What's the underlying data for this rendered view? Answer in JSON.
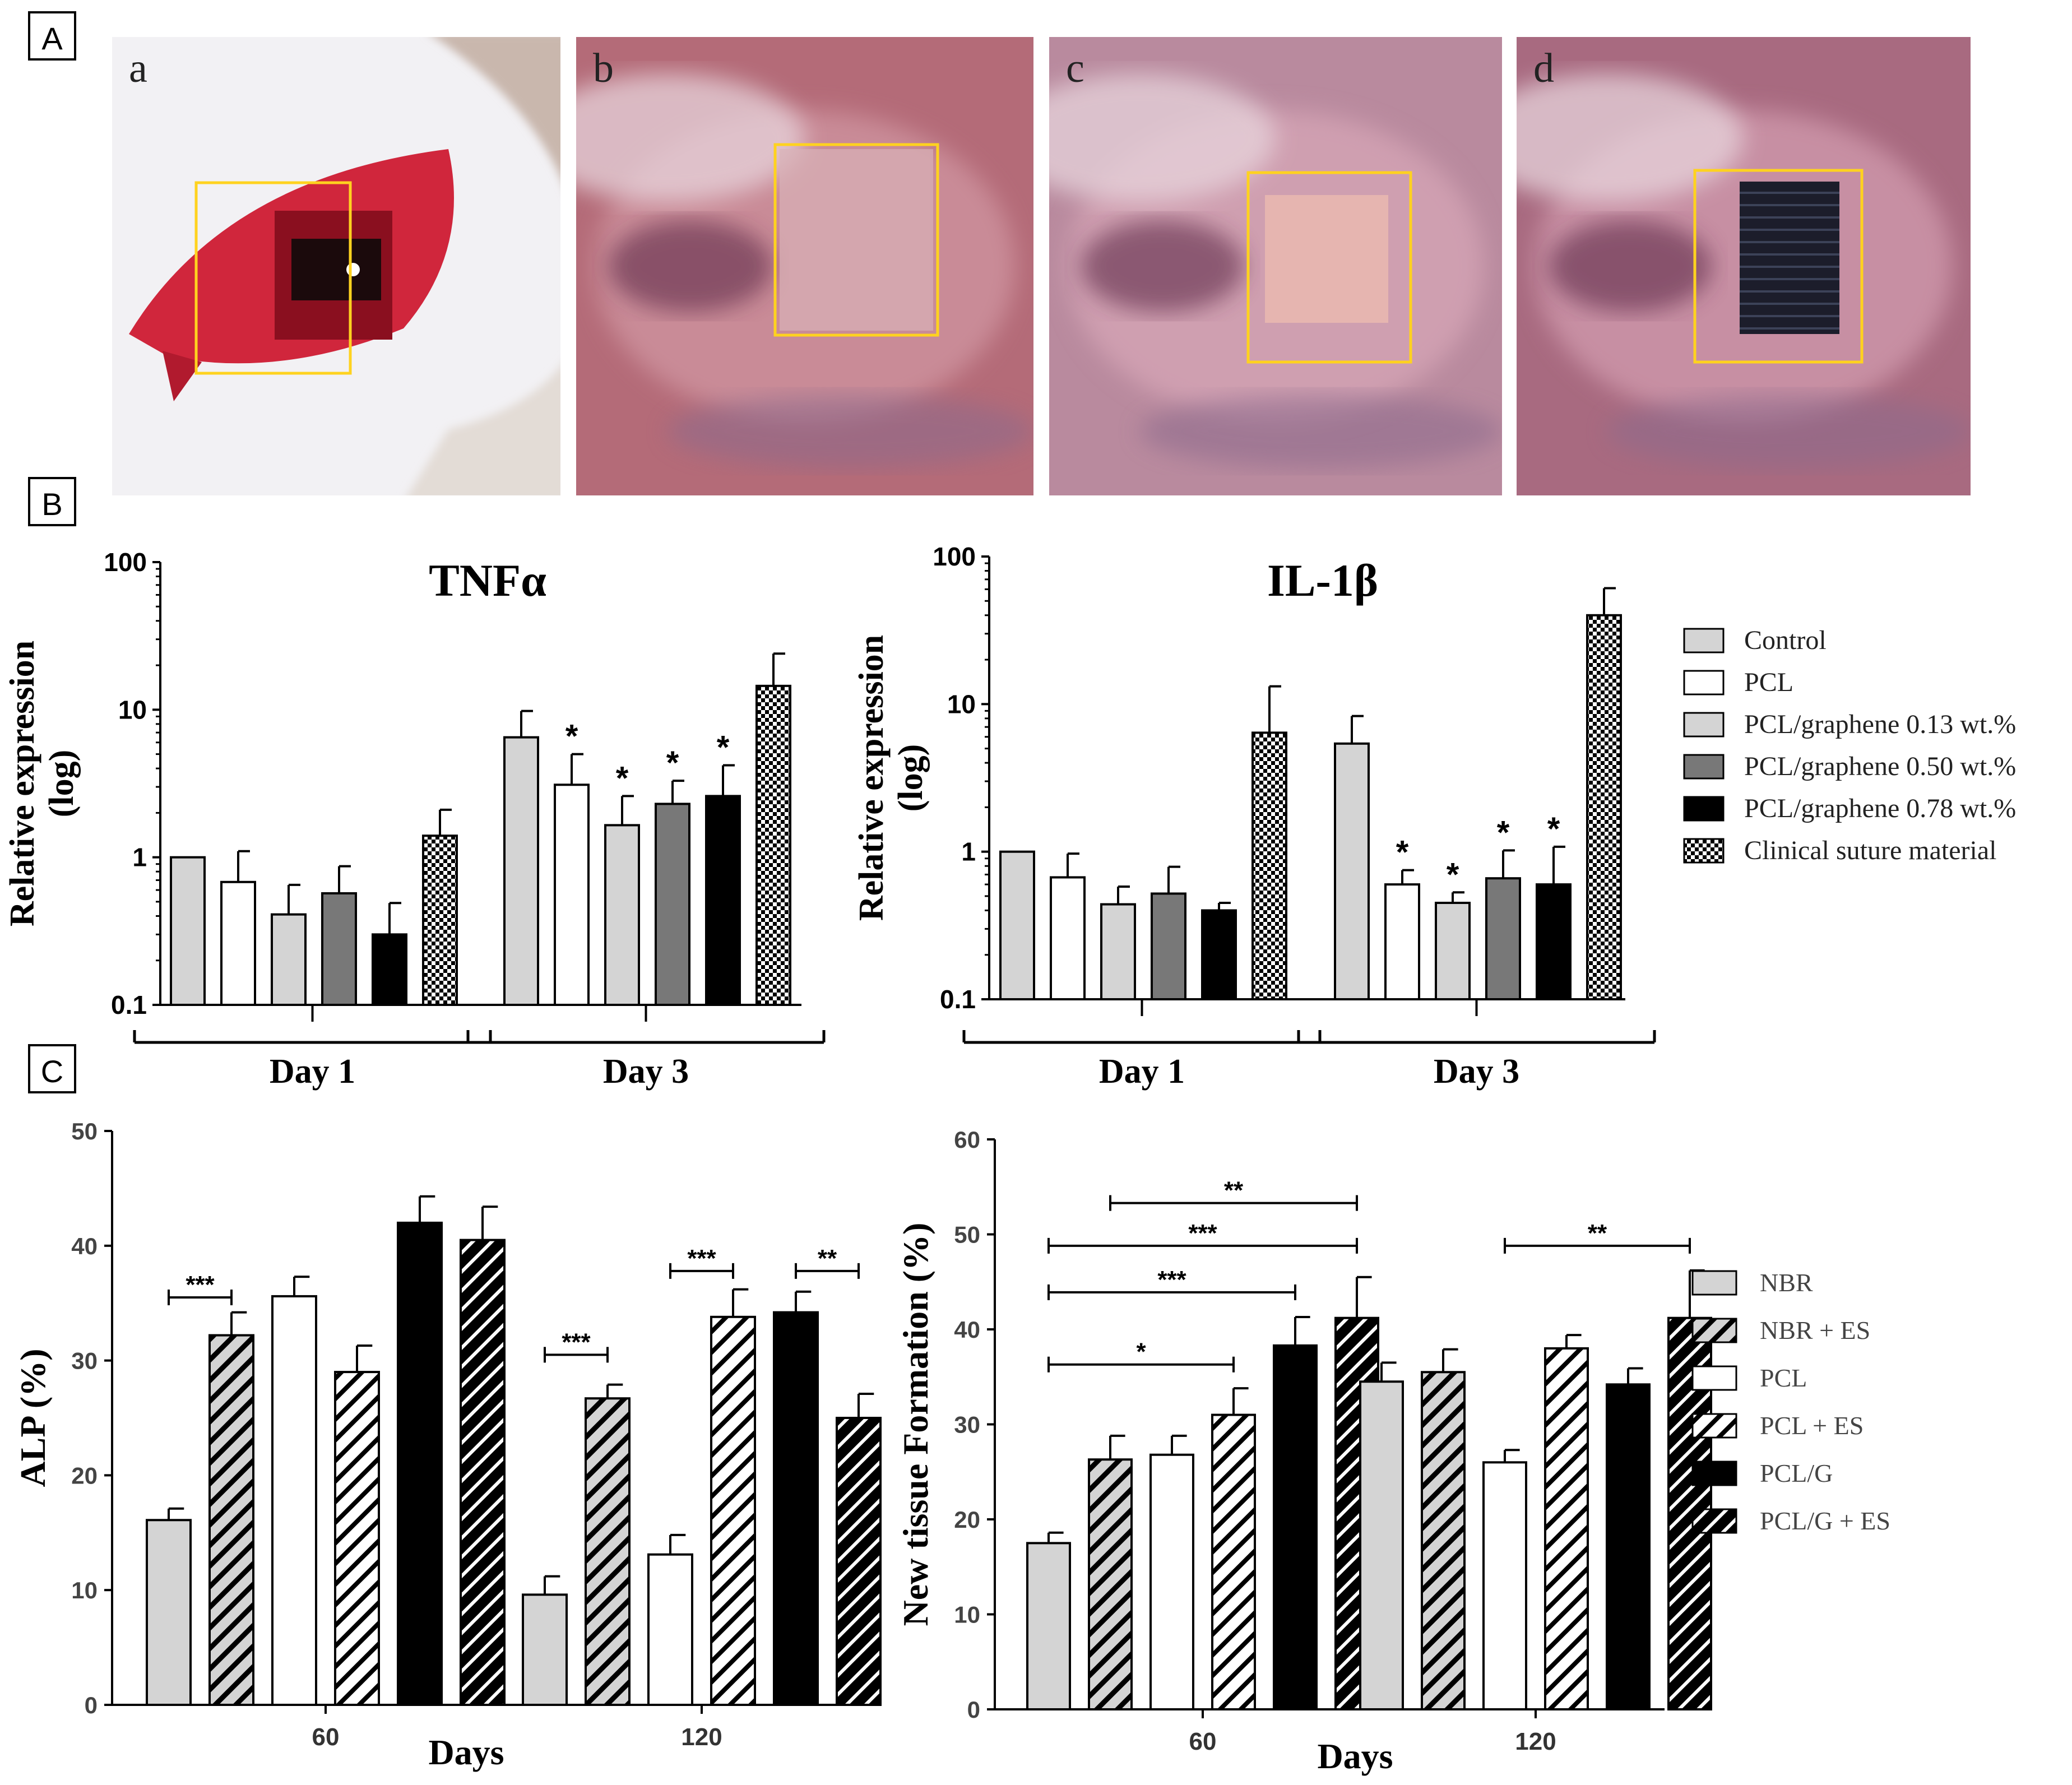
{
  "figure": {
    "panel_labels": [
      "A",
      "B",
      "C"
    ],
    "photos": [
      {
        "letter": "a",
        "tissue": "#d0263c",
        "skin": "#f2f1f4",
        "scene": "open-wound"
      },
      {
        "letter": "b",
        "tissue": "#c98b97",
        "skin": "#b46b78",
        "scene": "scaffold-translucent"
      },
      {
        "letter": "c",
        "tissue": "#cf9fb0",
        "skin": "#b98a9e",
        "scene": "scaffold-grid"
      },
      {
        "letter": "d",
        "tissue": "#c78fa3",
        "skin": "#a86a80",
        "scene": "scaffold-black"
      }
    ],
    "highlight_color": "#ffd21f"
  },
  "colors": {
    "control": "#d4d4d4",
    "pcl": "#ffffff",
    "light": "#d4d4d4",
    "mid": "#787878",
    "black": "#000000"
  },
  "chart_data": [
    {
      "type": "bar",
      "title": "TNFα",
      "ylabel": "Relative expression (log)",
      "yscale": "log",
      "ylim": [
        0.1,
        100
      ],
      "yticks": [
        0.1,
        1,
        10,
        100
      ],
      "tick_labels": [
        "0.1",
        "1",
        "10",
        "100"
      ],
      "categories": [
        "Day 1",
        "Day 3"
      ],
      "series": [
        {
          "name": "Control",
          "fill": "light",
          "values": [
            1.0,
            6.5
          ],
          "errors": [
            0,
            3.3
          ],
          "sig": [
            "",
            ""
          ]
        },
        {
          "name": "PCL",
          "fill": "white",
          "values": [
            0.68,
            3.1
          ],
          "errors": [
            0.42,
            1.9
          ],
          "sig": [
            "",
            "*"
          ]
        },
        {
          "name": "PCL/graphene 0.13 wt.%",
          "fill": "light",
          "values": [
            0.41,
            1.65
          ],
          "errors": [
            0.24,
            0.95
          ],
          "sig": [
            "",
            "*"
          ]
        },
        {
          "name": "PCL/graphene 0.50 wt.%",
          "fill": "mid",
          "values": [
            0.57,
            2.3
          ],
          "errors": [
            0.3,
            1.0
          ],
          "sig": [
            "",
            "*"
          ]
        },
        {
          "name": "PCL/graphene 0.78 wt.%",
          "fill": "black",
          "values": [
            0.3,
            2.6
          ],
          "errors": [
            0.19,
            1.6
          ],
          "sig": [
            "",
            "*"
          ]
        },
        {
          "name": "Clinical suture material",
          "fill": "checker",
          "values": [
            1.4,
            14.5
          ],
          "errors": [
            0.7,
            9.5
          ],
          "sig": [
            "",
            ""
          ]
        }
      ],
      "legend": "right"
    },
    {
      "type": "bar",
      "title": "IL-1β",
      "ylabel": "Relative expression (log)",
      "yscale": "log",
      "ylim": [
        0.1,
        100
      ],
      "yticks": [
        0.1,
        1,
        10,
        100
      ],
      "tick_labels": [
        "0.1",
        "1",
        "10",
        "100"
      ],
      "categories": [
        "Day 1",
        "Day 3"
      ],
      "series": [
        {
          "name": "Control",
          "fill": "light",
          "values": [
            1.0,
            5.4
          ],
          "errors": [
            0,
            2.9
          ],
          "sig": [
            "",
            ""
          ]
        },
        {
          "name": "PCL",
          "fill": "white",
          "values": [
            0.67,
            0.6
          ],
          "errors": [
            0.3,
            0.15
          ],
          "sig": [
            "",
            "*"
          ]
        },
        {
          "name": "PCL/graphene 0.13 wt.%",
          "fill": "light",
          "values": [
            0.44,
            0.45
          ],
          "errors": [
            0.14,
            0.08
          ],
          "sig": [
            "",
            "*"
          ]
        },
        {
          "name": "PCL/graphene 0.50 wt.%",
          "fill": "mid",
          "values": [
            0.52,
            0.66
          ],
          "errors": [
            0.27,
            0.36
          ],
          "sig": [
            "",
            "*"
          ]
        },
        {
          "name": "PCL/graphene 0.78 wt.%",
          "fill": "black",
          "values": [
            0.4,
            0.6
          ],
          "errors": [
            0.05,
            0.48
          ],
          "sig": [
            "",
            "*"
          ]
        },
        {
          "name": "Clinical suture material",
          "fill": "checker",
          "values": [
            6.4,
            40
          ],
          "errors": [
            6.8,
            21
          ],
          "sig": [
            "",
            ""
          ]
        }
      ],
      "legend": {
        "position": "right",
        "entries": [
          "Control",
          "PCL",
          "PCL/graphene 0.13 wt.%",
          "PCL/graphene 0.50 wt.%",
          "PCL/graphene 0.78 wt.%",
          "Clinical suture material"
        ]
      }
    },
    {
      "type": "bar",
      "title": "",
      "ylabel": "ALP (%)",
      "xlabel": "Days",
      "ylim": [
        0,
        50
      ],
      "yticks": [
        0,
        10,
        20,
        30,
        40,
        50
      ],
      "tick_labels": [
        "0",
        "10",
        "20",
        "30",
        "40",
        "50"
      ],
      "categories": [
        "60",
        "120"
      ],
      "series": [
        {
          "name": "NBR",
          "fill": "light",
          "values": [
            16.1,
            9.6
          ],
          "errors": [
            1.0,
            1.6
          ]
        },
        {
          "name": "NBR + ES",
          "fill": "hatch-light",
          "values": [
            32.2,
            26.7
          ],
          "errors": [
            2.0,
            1.2
          ]
        },
        {
          "name": "PCL",
          "fill": "white",
          "values": [
            35.6,
            13.1
          ],
          "errors": [
            1.7,
            1.7
          ]
        },
        {
          "name": "PCL + ES",
          "fill": "hatch-white",
          "values": [
            29.0,
            33.8
          ],
          "errors": [
            2.3,
            2.4
          ]
        },
        {
          "name": "PCL/G",
          "fill": "black",
          "values": [
            42.0,
            34.2
          ],
          "errors": [
            2.3,
            1.8
          ]
        },
        {
          "name": "PCL/G + ES",
          "fill": "hatch-black",
          "values": [
            40.5,
            25.0
          ],
          "errors": [
            2.9,
            2.1
          ]
        }
      ],
      "significance": [
        {
          "group": 0,
          "from": 0,
          "to": 1,
          "label": "***",
          "y": 35.5
        },
        {
          "group": 1,
          "from": 0,
          "to": 1,
          "label": "***",
          "y": 30.5
        },
        {
          "group": 1,
          "from": 2,
          "to": 3,
          "label": "***",
          "y": 37.8
        },
        {
          "group": 1,
          "from": 4,
          "to": 5,
          "label": "**",
          "y": 37.8
        }
      ]
    },
    {
      "type": "bar",
      "title": "",
      "ylabel": "New tissue Formation (%)",
      "xlabel": "Days",
      "ylim": [
        0,
        60
      ],
      "yticks": [
        0,
        10,
        20,
        30,
        40,
        50,
        60
      ],
      "tick_labels": [
        "0",
        "10",
        "20",
        "30",
        "40",
        "50",
        "60"
      ],
      "categories": [
        "60",
        "120"
      ],
      "series": [
        {
          "name": "NBR",
          "fill": "light",
          "values": [
            17.5,
            34.5
          ],
          "errors": [
            1.1,
            2.0
          ]
        },
        {
          "name": "NBR + ES",
          "fill": "hatch-light",
          "values": [
            26.3,
            35.5
          ],
          "errors": [
            2.5,
            2.4
          ]
        },
        {
          "name": "PCL",
          "fill": "white",
          "values": [
            26.8,
            26.0
          ],
          "errors": [
            2.0,
            1.3
          ]
        },
        {
          "name": "PCL + ES",
          "fill": "hatch-white",
          "values": [
            31.0,
            38.0
          ],
          "errors": [
            2.8,
            1.4
          ]
        },
        {
          "name": "PCL/G",
          "fill": "black",
          "values": [
            38.3,
            34.2
          ],
          "errors": [
            3.0,
            1.7
          ]
        },
        {
          "name": "PCL/G + ES",
          "fill": "hatch-black",
          "values": [
            41.2,
            41.2
          ],
          "errors": [
            4.3,
            5.0
          ]
        }
      ],
      "significance": [
        {
          "group": 0,
          "from": 1,
          "to": 5,
          "label": "**",
          "y": 53.3
        },
        {
          "group": 0,
          "from": 0,
          "to": 5,
          "label": "***",
          "y": 48.8
        },
        {
          "group": 0,
          "from": 0,
          "to": 4,
          "label": "***",
          "y": 43.9
        },
        {
          "group": 0,
          "from": 0,
          "to": 3,
          "label": "*",
          "y": 36.3
        },
        {
          "group": 1,
          "from": 2,
          "to": 5,
          "label": "**",
          "y": 48.8
        }
      ],
      "legend": {
        "position": "right",
        "entries": [
          "NBR",
          "NBR + ES",
          "PCL",
          "PCL + ES",
          "PCL/G",
          "PCL/G + ES"
        ]
      }
    }
  ]
}
